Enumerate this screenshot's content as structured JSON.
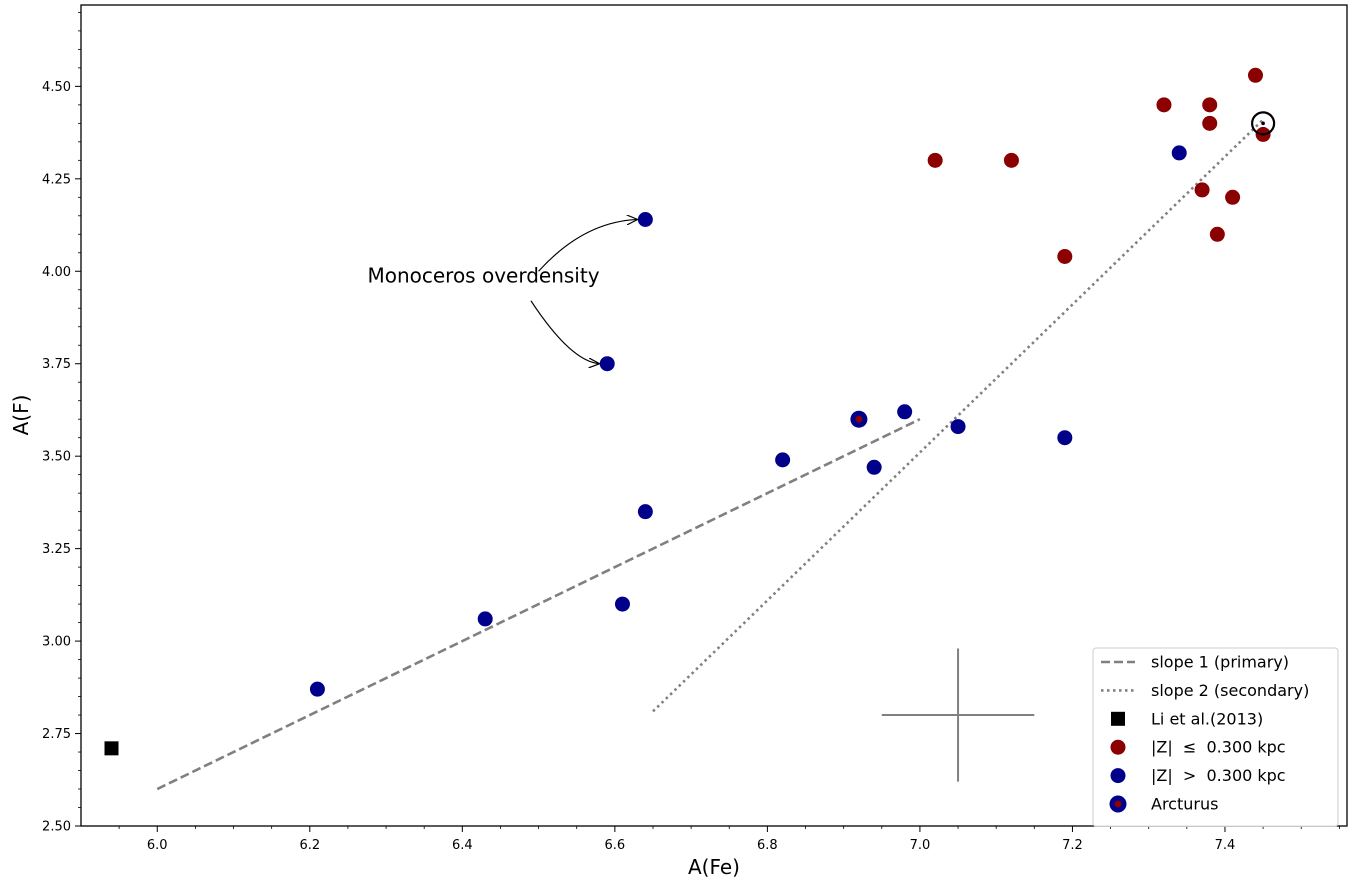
{
  "chart_data": {
    "type": "scatter",
    "xlabel": "A(Fe)",
    "ylabel": "A(F)",
    "xlim": [
      5.9,
      7.56
    ],
    "ylim": [
      2.5,
      4.72
    ],
    "x_ticks": [
      6.0,
      6.2,
      6.4,
      6.6,
      6.8,
      7.0,
      7.2,
      7.4
    ],
    "x_tick_labels": [
      "6.0",
      "6.2",
      "6.4",
      "6.6",
      "6.8",
      "7.0",
      "7.2",
      "7.4"
    ],
    "y_ticks": [
      2.5,
      2.75,
      3.0,
      3.25,
      3.5,
      3.75,
      4.0,
      4.25,
      4.5
    ],
    "y_tick_labels": [
      "2.50",
      "2.75",
      "3.00",
      "3.25",
      "3.50",
      "3.75",
      "4.00",
      "4.25",
      "4.50"
    ],
    "grid": false,
    "legend_position": "bottom-right",
    "colors": {
      "red": "#8b0000",
      "blue": "#00008b",
      "line": "#808080",
      "black": "#000000"
    },
    "series": [
      {
        "name": "slope 1 (primary)",
        "kind": "line",
        "style": "dashed",
        "color": "#808080",
        "points": [
          [
            6.0,
            2.6
          ],
          [
            7.0,
            3.6
          ]
        ]
      },
      {
        "name": "slope 2 (secondary)",
        "kind": "line",
        "style": "dotted",
        "color": "#808080",
        "points": [
          [
            6.65,
            2.81
          ],
          [
            7.45,
            4.41
          ]
        ]
      },
      {
        "name": "Li et al.(2013)",
        "kind": "square",
        "color": "#000000",
        "points": [
          [
            5.94,
            2.71
          ]
        ]
      },
      {
        "name": "|Z|  ≤  0.300 kpc",
        "kind": "circle",
        "color": "#8b0000",
        "points": [
          [
            7.02,
            4.3
          ],
          [
            7.12,
            4.3
          ],
          [
            7.19,
            4.04
          ],
          [
            7.32,
            4.45
          ],
          [
            7.37,
            4.22
          ],
          [
            7.38,
            4.45
          ],
          [
            7.38,
            4.4
          ],
          [
            7.39,
            4.1
          ],
          [
            7.41,
            4.2
          ],
          [
            7.44,
            4.53
          ],
          [
            7.45,
            4.37
          ]
        ]
      },
      {
        "name": "|Z|  >  0.300 kpc",
        "kind": "circle",
        "color": "#00008b",
        "points": [
          [
            6.21,
            2.87
          ],
          [
            6.43,
            3.06
          ],
          [
            6.59,
            3.75
          ],
          [
            6.61,
            3.1
          ],
          [
            6.64,
            3.35
          ],
          [
            6.64,
            4.14
          ],
          [
            6.82,
            3.49
          ],
          [
            6.94,
            3.47
          ],
          [
            6.98,
            3.62
          ],
          [
            7.05,
            3.58
          ],
          [
            7.19,
            3.55
          ],
          [
            7.34,
            4.32
          ]
        ]
      },
      {
        "name": "Arcturus",
        "kind": "circle-dot",
        "color": "#00008b",
        "dot_color": "#8b0000",
        "points": [
          [
            6.92,
            3.6
          ]
        ]
      }
    ],
    "sun_marker": {
      "x": 7.45,
      "y": 4.4
    },
    "error_bar": {
      "x": 7.05,
      "y": 2.8,
      "xerr": 0.1,
      "yerr": 0.18
    },
    "annotations": [
      {
        "text": "Monoceros overdensity",
        "x": 6.45,
        "y": 3.97,
        "arrows_to": [
          [
            6.63,
            4.14
          ],
          [
            6.58,
            3.75
          ]
        ]
      }
    ]
  }
}
